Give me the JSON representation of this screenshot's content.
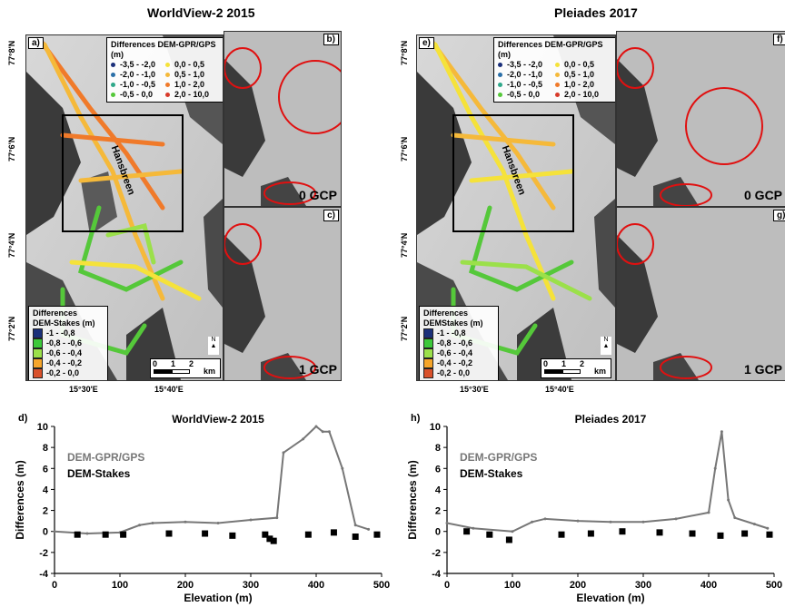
{
  "figure": {
    "left_map": {
      "title": "WorldView-2 2015",
      "panels": [
        "a)",
        "b)",
        "c)"
      ],
      "glacier_label": "Hansbreen",
      "gcp_labels": [
        "0 GCP",
        "1 GCP"
      ],
      "lat_labels": [
        "77°8'N",
        "77°6'N",
        "77°4'N",
        "77°2'N"
      ],
      "lon_labels": [
        "15°30'E",
        "15°40'E"
      ]
    },
    "right_map": {
      "title": "Pleiades 2017",
      "panels": [
        "e)",
        "f)",
        "g)"
      ],
      "glacier_label": "Hansbreen",
      "gcp_labels": [
        "0 GCP",
        "1 GCP"
      ],
      "lat_labels": [
        "77°8'N",
        "77°6'N",
        "77°4'N",
        "77°2'N"
      ],
      "lon_labels": [
        "15°30'E",
        "15°40'E"
      ]
    },
    "legend_gps": {
      "title": "Differences DEM-GPR/GPS (m)",
      "entries": [
        {
          "label": "-3,5 - -2,0",
          "color": "#1a2f7a"
        },
        {
          "label": "0,0 - 0,5",
          "color": "#f5e23a"
        },
        {
          "label": "-2,0 - -1,0",
          "color": "#2a6fa8"
        },
        {
          "label": "0,5 - 1,0",
          "color": "#f5b93a"
        },
        {
          "label": "-1,0 - -0,5",
          "color": "#2fa88a"
        },
        {
          "label": "1,0 - 2,0",
          "color": "#f07a2a"
        },
        {
          "label": "-0,5 - 0,0",
          "color": "#55c83a"
        },
        {
          "label": "2,0 - 10,0",
          "color": "#d83a2a"
        }
      ]
    },
    "legend_stakes_left": {
      "title_line1": "Differences",
      "title_line2": "DEM-Stakes (m)",
      "entries": [
        {
          "label": "-1 - -0,8",
          "color": "#1a2f7a"
        },
        {
          "label": "-0,8 - -0,6",
          "color": "#3cc83a"
        },
        {
          "label": "-0,6 - -0,4",
          "color": "#9be04a"
        },
        {
          "label": "-0,4 - -0,2",
          "color": "#f5a52a"
        },
        {
          "label": "-0,2 - 0,0",
          "color": "#d8502a"
        }
      ]
    },
    "legend_stakes_right": {
      "title_line1": "Differences",
      "title_line2": "DEMStakes (m)"
    },
    "scalebar": {
      "ticks": [
        "0",
        "1",
        "2"
      ],
      "unit": "km"
    },
    "north_label": "N"
  },
  "chart_data": [
    {
      "panel": "d)",
      "type": "scatter",
      "title": "WorldView-2 2015",
      "xlabel": "Elevation (m)",
      "ylabel": "Differences (m)",
      "xlim": [
        0,
        500
      ],
      "ylim": [
        -4,
        10
      ],
      "xticks": [
        "0",
        "100",
        "200",
        "300",
        "400",
        "500"
      ],
      "yticks": [
        "-4",
        "-2",
        "0",
        "2",
        "4",
        "6",
        "8",
        "10"
      ],
      "series": [
        {
          "name": "DEM-GPR/GPS",
          "color": "#777777",
          "x": [
            0,
            50,
            100,
            130,
            150,
            200,
            250,
            300,
            340,
            350,
            380,
            400,
            410,
            420,
            440,
            460,
            480
          ],
          "y": [
            0.0,
            -0.2,
            -0.1,
            0.6,
            0.8,
            0.9,
            0.8,
            1.1,
            1.3,
            7.5,
            8.8,
            10.0,
            9.5,
            9.5,
            6.0,
            0.6,
            0.2
          ]
        },
        {
          "name": "DEM-Stakes",
          "color": "#000000",
          "x": [
            35,
            78,
            105,
            175,
            230,
            272,
            322,
            329,
            335,
            388,
            427,
            460,
            493
          ],
          "y": [
            -0.3,
            -0.3,
            -0.3,
            -0.2,
            -0.2,
            -0.4,
            -0.3,
            -0.7,
            -0.9,
            -0.3,
            -0.1,
            -0.5,
            -0.3
          ]
        }
      ]
    },
    {
      "panel": "h)",
      "type": "scatter",
      "title": "Pleiades 2017",
      "xlabel": "Elevation (m)",
      "ylabel": "Differences (m)",
      "xlim": [
        0,
        500
      ],
      "ylim": [
        -4,
        10
      ],
      "xticks": [
        "0",
        "100",
        "200",
        "300",
        "400",
        "500"
      ],
      "yticks": [
        "-4",
        "-2",
        "0",
        "2",
        "4",
        "6",
        "8",
        "10"
      ],
      "series": [
        {
          "name": "DEM-GPR/GPS",
          "color": "#777777",
          "x": [
            0,
            40,
            100,
            130,
            150,
            200,
            250,
            300,
            350,
            400,
            410,
            420,
            430,
            440,
            470,
            490
          ],
          "y": [
            0.8,
            0.3,
            0.0,
            0.9,
            1.2,
            1.0,
            0.9,
            0.9,
            1.2,
            1.8,
            6.0,
            9.5,
            3.0,
            1.3,
            0.7,
            0.3
          ]
        },
        {
          "name": "DEM-Stakes",
          "color": "#000000",
          "x": [
            30,
            65,
            95,
            175,
            220,
            268,
            325,
            375,
            418,
            455,
            493
          ],
          "y": [
            0.0,
            -0.3,
            -0.8,
            -0.3,
            -0.2,
            0.0,
            -0.1,
            -0.2,
            -0.4,
            -0.2,
            -0.3
          ]
        }
      ]
    }
  ]
}
